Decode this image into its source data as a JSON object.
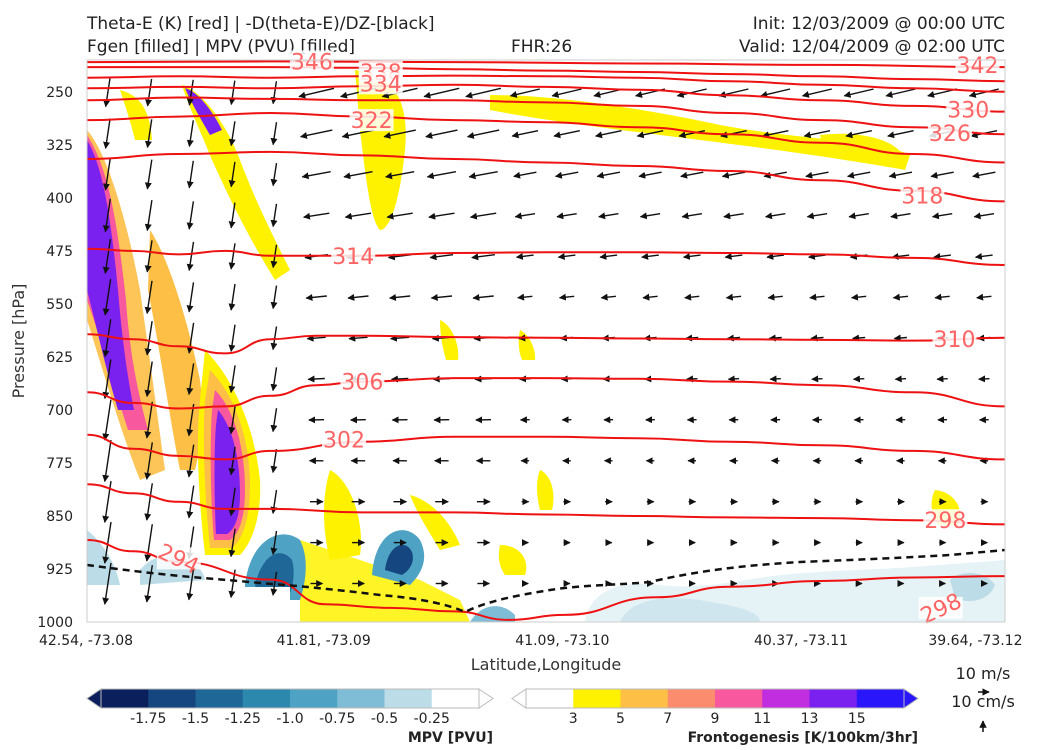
{
  "header": {
    "title_line1": "Theta-E (K) [red] | -D(theta-E)/DZ-[black]",
    "title_line2": "Fgen [filled] | MPV (PVU) [filled]",
    "fhr": "FHR:26",
    "init": "Init: 12/03/2009 @ 00:00 UTC",
    "valid": "Valid: 12/04/2009 @ 02:00 UTC"
  },
  "chart_data": {
    "type": "cross-section",
    "xlabel": "Latitude,Longitude",
    "ylabel": "Pressure [hPa]",
    "x_ticks": [
      "42.54, -73.08",
      "41.81, -73.09",
      "41.09, -73.10",
      "40.37, -73.11",
      "39.64, -73.12"
    ],
    "y_ticks": [
      250,
      325,
      400,
      475,
      550,
      625,
      700,
      775,
      850,
      925,
      1000
    ],
    "ylim": [
      1000,
      205
    ],
    "theta_e_contours": [
      {
        "label": "294",
        "points": [
          [
            0,
            884
          ],
          [
            0.05,
            900
          ],
          [
            0.1,
            915
          ],
          [
            0.2,
            940
          ],
          [
            0.26,
            975
          ],
          [
            0.33,
            980
          ],
          [
            0.4,
            985
          ],
          [
            0.46,
            997
          ],
          [
            0.52,
            990
          ],
          [
            0.62,
            965
          ],
          [
            0.7,
            950
          ],
          [
            0.8,
            942
          ],
          [
            0.9,
            937
          ],
          [
            1.0,
            935
          ]
        ]
      },
      {
        "label": "298",
        "points": [
          [
            0,
            805
          ],
          [
            0.05,
            818
          ],
          [
            0.1,
            830
          ],
          [
            0.15,
            840
          ],
          [
            0.2,
            840
          ],
          [
            0.3,
            845
          ],
          [
            0.4,
            845
          ],
          [
            0.5,
            848
          ],
          [
            0.6,
            850
          ],
          [
            0.7,
            852
          ],
          [
            0.8,
            853
          ],
          [
            0.9,
            856
          ],
          [
            1.0,
            862
          ]
        ]
      },
      {
        "label": "302",
        "points": [
          [
            0,
            735
          ],
          [
            0.05,
            755
          ],
          [
            0.1,
            765
          ],
          [
            0.15,
            770
          ],
          [
            0.2,
            758
          ],
          [
            0.3,
            745
          ],
          [
            0.4,
            738
          ],
          [
            0.5,
            738
          ],
          [
            0.6,
            740
          ],
          [
            0.7,
            745
          ],
          [
            0.8,
            750
          ],
          [
            0.9,
            758
          ],
          [
            1.0,
            770
          ]
        ]
      },
      {
        "label": "306",
        "points": [
          [
            0,
            675
          ],
          [
            0.05,
            690
          ],
          [
            0.1,
            698
          ],
          [
            0.15,
            695
          ],
          [
            0.2,
            680
          ],
          [
            0.25,
            665
          ],
          [
            0.3,
            660
          ],
          [
            0.4,
            655
          ],
          [
            0.5,
            655
          ],
          [
            0.6,
            656
          ],
          [
            0.7,
            660
          ],
          [
            0.8,
            665
          ],
          [
            0.9,
            675
          ],
          [
            1.0,
            695
          ]
        ]
      },
      {
        "label": "310",
        "points": [
          [
            0,
            593
          ],
          [
            0.05,
            600
          ],
          [
            0.1,
            610
          ],
          [
            0.15,
            620
          ],
          [
            0.2,
            600
          ],
          [
            0.25,
            595
          ],
          [
            0.3,
            595
          ],
          [
            0.4,
            597
          ],
          [
            0.5,
            598
          ],
          [
            0.6,
            599
          ],
          [
            0.7,
            600
          ],
          [
            0.8,
            601
          ],
          [
            0.9,
            602
          ],
          [
            1.0,
            598
          ]
        ]
      },
      {
        "label": "314",
        "points": [
          [
            0,
            472
          ],
          [
            0.05,
            475
          ],
          [
            0.1,
            480
          ],
          [
            0.15,
            475
          ],
          [
            0.2,
            482
          ],
          [
            0.3,
            482
          ],
          [
            0.4,
            478
          ],
          [
            0.5,
            477
          ],
          [
            0.6,
            477
          ],
          [
            0.7,
            478
          ],
          [
            0.8,
            480
          ],
          [
            0.9,
            485
          ],
          [
            1.0,
            495
          ]
        ]
      },
      {
        "label": "318",
        "points": [
          [
            0,
            345
          ],
          [
            0.1,
            338
          ],
          [
            0.2,
            335
          ],
          [
            0.3,
            340
          ],
          [
            0.4,
            345
          ],
          [
            0.5,
            350
          ],
          [
            0.6,
            355
          ],
          [
            0.7,
            362
          ],
          [
            0.8,
            375
          ],
          [
            0.9,
            390
          ],
          [
            1.0,
            405
          ]
        ]
      },
      {
        "label": "322",
        "points": [
          [
            0,
            290
          ],
          [
            0.1,
            285
          ],
          [
            0.2,
            280
          ],
          [
            0.3,
            285
          ],
          [
            0.4,
            290
          ],
          [
            0.5,
            293
          ],
          [
            0.6,
            300
          ],
          [
            0.7,
            310
          ],
          [
            0.8,
            322
          ],
          [
            0.9,
            338
          ],
          [
            1.0,
            350
          ]
        ]
      },
      {
        "label": "326",
        "points": [
          [
            0,
            262
          ],
          [
            0.1,
            258
          ],
          [
            0.2,
            260
          ],
          [
            0.3,
            262
          ],
          [
            0.4,
            262
          ],
          [
            0.5,
            265
          ],
          [
            0.6,
            270
          ],
          [
            0.7,
            280
          ],
          [
            0.8,
            290
          ],
          [
            0.9,
            300
          ],
          [
            1.0,
            310
          ]
        ]
      },
      {
        "label": "330",
        "points": [
          [
            0,
            245
          ],
          [
            0.1,
            243
          ],
          [
            0.2,
            245
          ],
          [
            0.3,
            242
          ],
          [
            0.4,
            240
          ],
          [
            0.5,
            243
          ],
          [
            0.6,
            247
          ],
          [
            0.7,
            255
          ],
          [
            0.8,
            262
          ],
          [
            0.9,
            270
          ],
          [
            1.0,
            278
          ]
        ]
      },
      {
        "label": "334",
        "points": [
          [
            0,
            230
          ],
          [
            0.1,
            228
          ],
          [
            0.2,
            230
          ],
          [
            0.3,
            228
          ],
          [
            0.4,
            227
          ],
          [
            0.5,
            228
          ],
          [
            0.6,
            230
          ],
          [
            0.7,
            235
          ],
          [
            0.8,
            240
          ],
          [
            0.9,
            245
          ],
          [
            1.0,
            250
          ]
        ]
      },
      {
        "label": "338",
        "points": [
          [
            0,
            215
          ],
          [
            0.2,
            215
          ],
          [
            0.3,
            216
          ],
          [
            0.4,
            218
          ],
          [
            0.5,
            220
          ],
          [
            0.6,
            222
          ],
          [
            0.7,
            225
          ],
          [
            0.8,
            228
          ],
          [
            0.9,
            232
          ],
          [
            1.0,
            235
          ]
        ]
      },
      {
        "label": "342",
        "points": [
          [
            0,
            208
          ],
          [
            0.2,
            207
          ],
          [
            0.4,
            208
          ],
          [
            0.6,
            210
          ],
          [
            0.8,
            212
          ],
          [
            1.0,
            215
          ]
        ]
      }
    ],
    "theta_e_labels": [
      {
        "text": "346",
        "x": 0.245,
        "p": 207,
        "rot": 0
      },
      {
        "text": "342",
        "x": 0.97,
        "p": 212,
        "rot": 0
      },
      {
        "text": "338",
        "x": 0.32,
        "p": 222,
        "rot": 0
      },
      {
        "text": "334",
        "x": 0.32,
        "p": 238,
        "rot": 0
      },
      {
        "text": "322",
        "x": 0.31,
        "p": 290,
        "rot": 0
      },
      {
        "text": "330",
        "x": 0.96,
        "p": 275,
        "rot": 0
      },
      {
        "text": "326",
        "x": 0.94,
        "p": 308,
        "rot": 0
      },
      {
        "text": "318",
        "x": 0.91,
        "p": 397,
        "rot": 0
      },
      {
        "text": "314",
        "x": 0.29,
        "p": 482,
        "rot": 0
      },
      {
        "text": "310",
        "x": 0.945,
        "p": 600,
        "rot": 0
      },
      {
        "text": "306",
        "x": 0.3,
        "p": 660,
        "rot": 0
      },
      {
        "text": "302",
        "x": 0.28,
        "p": 742,
        "rot": 0
      },
      {
        "text": "298",
        "x": 0.935,
        "p": 856,
        "rot": 0
      },
      {
        "text": "298",
        "x": 0.93,
        "p": 980,
        "rot": -25
      },
      {
        "text": "294",
        "x": 0.1,
        "p": 910,
        "rot": 25
      }
    ],
    "mpv_colorbar": {
      "title": "MPV [PVU]",
      "labels": [
        "-1.75",
        "-1.5",
        "-1.25",
        "-1.0",
        "-0.75",
        "-0.5",
        "-0.25"
      ],
      "colors": [
        "#0b1f5c",
        "#16467f",
        "#1f6797",
        "#2d88ad",
        "#4ea2c4",
        "#7fbdd6",
        "#bcdde8",
        "#ffffff"
      ]
    },
    "fgen_colorbar": {
      "title": "Frontogenesis [K/100km/3hr]",
      "labels": [
        "3",
        "5",
        "7",
        "9",
        "11",
        "13",
        "15"
      ],
      "colors": [
        "#ffffff",
        "#fff200",
        "#fdbf45",
        "#fb8c6e",
        "#f8589e",
        "#c02ee0",
        "#7a20ef",
        "#2a16fb"
      ]
    },
    "vector_scale": {
      "horizontal": "10 m/s",
      "vertical": "10 cm/s"
    }
  }
}
